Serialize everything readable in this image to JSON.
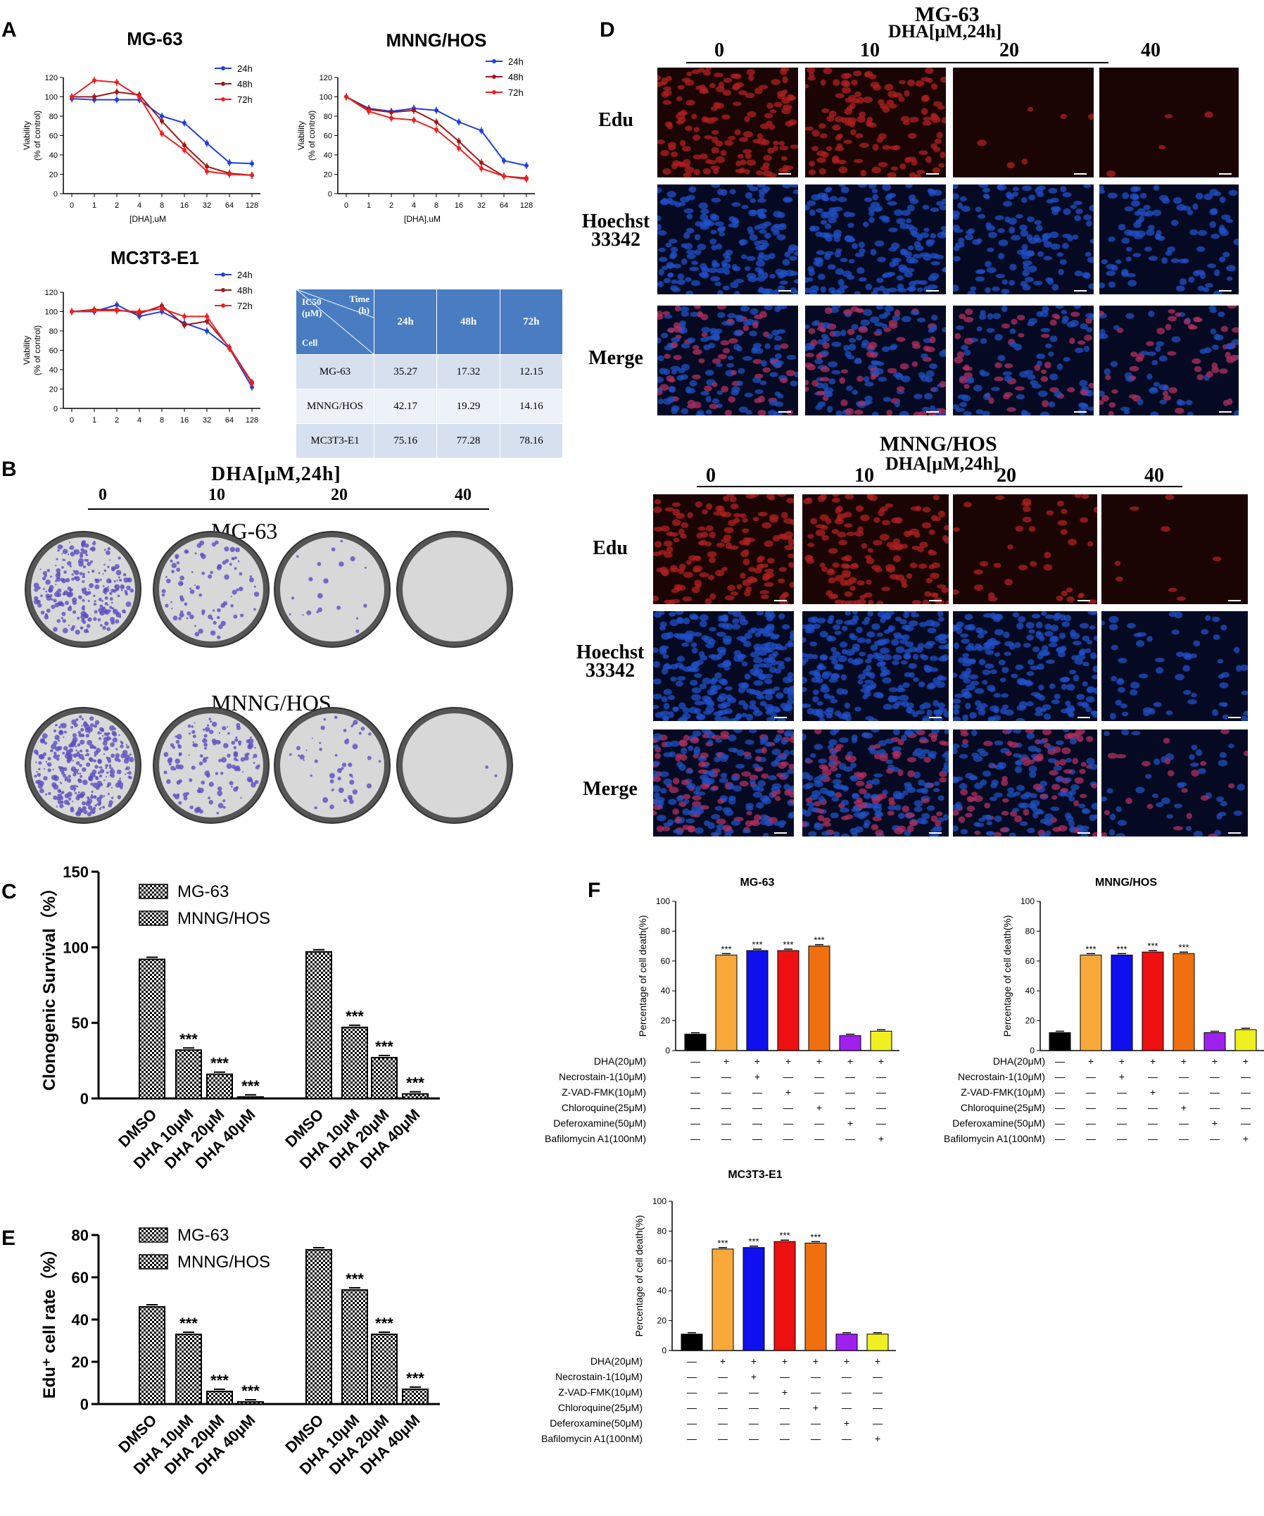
{
  "panel_labels": {
    "A": "A",
    "B": "B",
    "C": "C",
    "D": "D",
    "E": "E",
    "F": "F"
  },
  "colors": {
    "h24": "#1f3fe0",
    "h48": "#a01818",
    "h72": "#f02020",
    "black": "#000000",
    "orange": "#f9a93a",
    "blue": "#1010ee",
    "red": "#ee1010",
    "darkorange": "#f07010",
    "purple": "#a020f0",
    "yellow": "#f0f020"
  },
  "viability_xticks": [
    "0",
    "1",
    "2",
    "4",
    "8",
    "16",
    "32",
    "64",
    "128"
  ],
  "viability_yticks": [
    "0",
    "20",
    "40",
    "60",
    "80",
    "100",
    "120"
  ],
  "viability_ylabel": [
    "Viability",
    "(% of control)"
  ],
  "viability_xlabel": "[DHA],uM",
  "viability_legend": [
    "24h",
    "48h",
    "72h"
  ],
  "chart_data": [
    {
      "type": "line",
      "title": "MG-63",
      "xlabel": "[DHA],uM",
      "ylabel": "Viability (% of control)",
      "ylim": [
        0,
        120
      ],
      "categories": [
        "0",
        "1",
        "2",
        "4",
        "8",
        "16",
        "32",
        "64",
        "128"
      ],
      "series": [
        {
          "name": "24h",
          "values": [
            98,
            97,
            97,
            97,
            80,
            73,
            52,
            32,
            31
          ]
        },
        {
          "name": "48h",
          "values": [
            100,
            100,
            105,
            102,
            75,
            50,
            28,
            21,
            19
          ]
        },
        {
          "name": "72h",
          "values": [
            100,
            117,
            115,
            100,
            62,
            45,
            23,
            20,
            19
          ]
        }
      ]
    },
    {
      "type": "line",
      "title": "MNNG/HOS",
      "xlabel": "[DHA],uM",
      "ylabel": "Viability (% of control)",
      "ylim": [
        0,
        120
      ],
      "categories": [
        "0",
        "1",
        "2",
        "4",
        "8",
        "16",
        "32",
        "64",
        "128"
      ],
      "series": [
        {
          "name": "24h",
          "values": [
            100,
            88,
            85,
            88,
            86,
            74,
            65,
            34,
            29
          ]
        },
        {
          "name": "48h",
          "values": [
            100,
            87,
            84,
            86,
            74,
            54,
            32,
            18,
            16
          ]
        },
        {
          "name": "72h",
          "values": [
            100,
            85,
            78,
            76,
            66,
            47,
            26,
            18,
            15
          ]
        }
      ]
    },
    {
      "type": "line",
      "title": "MC3T3-E1",
      "xlabel": "[DHA],uM",
      "ylabel": "Viability (% of control)",
      "ylim": [
        0,
        120
      ],
      "categories": [
        "0",
        "1",
        "2",
        "4",
        "8",
        "16",
        "32",
        "64",
        "128"
      ],
      "series": [
        {
          "name": "24h",
          "values": [
            100,
            100,
            107,
            95,
            100,
            88,
            80,
            62,
            22
          ]
        },
        {
          "name": "48h",
          "values": [
            100,
            102,
            102,
            98,
            106,
            86,
            90,
            63,
            27
          ]
        },
        {
          "name": "72h",
          "values": [
            100,
            101,
            101,
            100,
            103,
            95,
            95,
            62,
            26
          ]
        }
      ]
    },
    {
      "type": "table",
      "title": "IC50",
      "header": [
        "IC50 (μM)",
        "Time (h)",
        "Cell"
      ],
      "columns": [
        "24h",
        "48h",
        "72h"
      ],
      "rows": [
        {
          "cell": "MG-63",
          "values": [
            "35.27",
            "17.32",
            "12.15"
          ]
        },
        {
          "cell": "MNNG/HOS",
          "values": [
            "42.17",
            "19.29",
            "14.16"
          ]
        },
        {
          "cell": "MC3T3-E1",
          "values": [
            "75.16",
            "77.28",
            "78.16"
          ]
        }
      ]
    },
    {
      "type": "bar",
      "ylabel": "Clonogenic Survival（%）",
      "ylim": [
        0,
        150
      ],
      "yticks": [
        "0",
        "50",
        "100",
        "150"
      ],
      "categories": [
        "DMSO",
        "DHA 10μM",
        "DHA 20μM",
        "DHA 40μM",
        "DMSO",
        "DHA 10μM",
        "DHA 20μM",
        "DHA 40μM"
      ],
      "legend": [
        "MG-63",
        "MNNG/HOS"
      ],
      "values": [
        92,
        32,
        16,
        1,
        97,
        47,
        27,
        3
      ],
      "annotations": [
        "",
        "***",
        "***",
        "***",
        "",
        "***",
        "***",
        "***"
      ]
    },
    {
      "type": "bar",
      "ylabel": "Edu⁺ cell rate（%）",
      "ylim": [
        0,
        80
      ],
      "yticks": [
        "0",
        "20",
        "40",
        "60",
        "80"
      ],
      "categories": [
        "DMSO",
        "DHA 10μM",
        "DHA 20μM",
        "DHA 40μM",
        "DMSO",
        "DHA 10μM",
        "DHA 20μM",
        "DHA 40μM"
      ],
      "legend": [
        "MG-63",
        "MNNG/HOS"
      ],
      "values": [
        46,
        33,
        6,
        1,
        73,
        54,
        33,
        7
      ],
      "annotations": [
        "",
        "***",
        "***",
        "***",
        "",
        "***",
        "***",
        "***"
      ]
    },
    {
      "type": "bar",
      "title": "MG-63",
      "ylabel": "Percentage of cell death(%)",
      "ylim": [
        0,
        100
      ],
      "yticks": [
        "0",
        "20",
        "40",
        "60",
        "80",
        "100"
      ],
      "values": [
        11,
        64,
        67,
        67,
        70,
        10,
        13
      ],
      "annotations": [
        "",
        "***",
        "***",
        "***",
        "***",
        "",
        ""
      ]
    },
    {
      "type": "bar",
      "title": "MNNG/HOS",
      "ylabel": "Percentage of cell death(%)",
      "ylim": [
        0,
        100
      ],
      "yticks": [
        "0",
        "20",
        "40",
        "60",
        "80",
        "100"
      ],
      "values": [
        12,
        64,
        64,
        66,
        65,
        12,
        14
      ],
      "annotations": [
        "",
        "***",
        "***",
        "***",
        "***",
        "",
        ""
      ]
    },
    {
      "type": "bar",
      "title": "MC3T3-E1",
      "ylabel": "Percentage of cell death(%)",
      "ylim": [
        0,
        100
      ],
      "yticks": [
        "0",
        "20",
        "40",
        "60",
        "80",
        "100"
      ],
      "values": [
        11,
        68,
        69,
        73,
        72,
        11,
        11
      ],
      "annotations": [
        "",
        "***",
        "***",
        "***",
        "***",
        "",
        ""
      ]
    }
  ],
  "treatment_rows": {
    "labels": [
      "DHA(20μM)",
      "Necrostain-1(10μM)",
      "Z-VAD-FMK(10μM)",
      "Chloroquine(25μM)",
      "Deferoxamine(50μM)",
      "Bafilomycin A1(100nM)"
    ],
    "marks": [
      [
        "—",
        "+",
        "+",
        "+",
        "+",
        "+",
        "+"
      ],
      [
        "—",
        "—",
        "+",
        "—",
        "—",
        "—",
        "—"
      ],
      [
        "—",
        "—",
        "—",
        "+",
        "—",
        "—",
        "—"
      ],
      [
        "—",
        "—",
        "—",
        "—",
        "+",
        "—",
        "—"
      ],
      [
        "—",
        "—",
        "—",
        "—",
        "—",
        "+",
        "—"
      ],
      [
        "—",
        "—",
        "—",
        "—",
        "—",
        "—",
        "+"
      ]
    ]
  },
  "panel_b": {
    "dose_title": "DHA[μM,24h]",
    "doses": [
      "0",
      "10",
      "20",
      "40"
    ],
    "cell1": "MG-63",
    "cell2": "MNNG/HOS"
  },
  "panel_d": {
    "cell1": "MG-63",
    "cell2": "MNNG/HOS",
    "dose_title": "DHA[μM,24h]",
    "doses": [
      "0",
      "10",
      "20",
      "40"
    ],
    "rows": [
      "Edu",
      "Hoechst 33342",
      "Merge"
    ]
  }
}
